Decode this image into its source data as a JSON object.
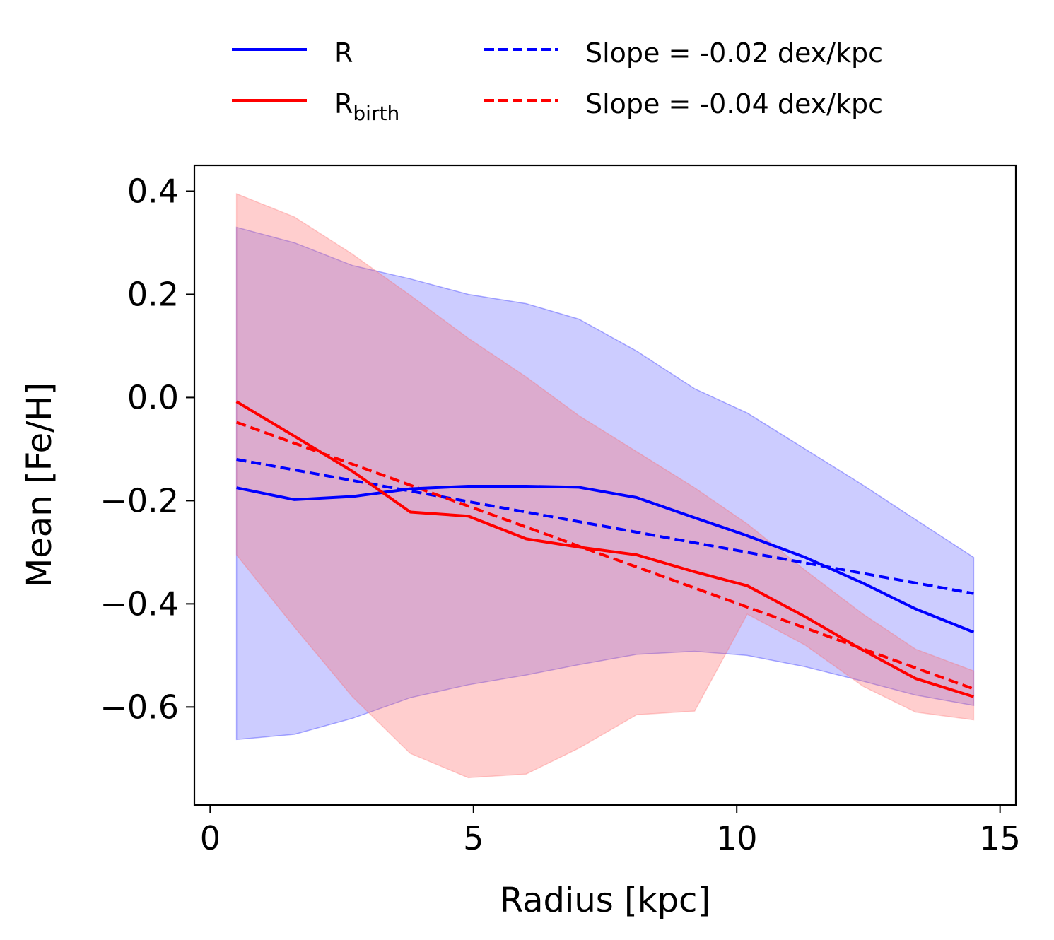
{
  "chart_data": {
    "type": "line",
    "xlabel": "Radius [kpc]",
    "ylabel": "Mean [Fe/H]",
    "xlim": [
      -0.3,
      15.3
    ],
    "ylim": [
      -0.79,
      0.45
    ],
    "xticks": [
      0,
      5,
      10,
      15
    ],
    "xtick_labels": [
      "0",
      "5",
      "10",
      "15"
    ],
    "yticks": [
      0.4,
      0.2,
      0.0,
      -0.2,
      -0.4,
      -0.6
    ],
    "ytick_labels": [
      "0.4",
      "0.2",
      "0.0",
      "−0.2",
      "−0.4",
      "−0.6"
    ],
    "grid": false,
    "legend_position": "top-center, outside plot, 2 columns",
    "x": [
      0.5,
      1.6,
      2.7,
      3.8,
      4.9,
      6.0,
      7.0,
      8.1,
      9.2,
      10.2,
      11.3,
      12.4,
      13.4,
      14.5
    ],
    "series": [
      {
        "name": "R",
        "color": "#0000ff",
        "style": "solid",
        "values": [
          -0.175,
          -0.198,
          -0.192,
          -0.177,
          -0.172,
          -0.172,
          -0.174,
          -0.194,
          -0.233,
          -0.268,
          -0.31,
          -0.36,
          -0.41,
          -0.455
        ],
        "band_upper": [
          0.33,
          0.3,
          0.256,
          0.23,
          0.2,
          0.182,
          0.152,
          0.09,
          0.017,
          -0.03,
          -0.1,
          -0.17,
          -0.237,
          -0.31
        ],
        "band_lower": [
          -0.663,
          -0.653,
          -0.622,
          -0.582,
          -0.557,
          -0.538,
          -0.518,
          -0.498,
          -0.492,
          -0.5,
          -0.522,
          -0.55,
          -0.577,
          -0.597
        ],
        "band_color": "#0000ff"
      },
      {
        "name": "R_birth",
        "color": "#ff0000",
        "style": "solid",
        "values": [
          -0.008,
          -0.075,
          -0.143,
          -0.222,
          -0.23,
          -0.274,
          -0.29,
          -0.305,
          -0.338,
          -0.365,
          -0.425,
          -0.49,
          -0.545,
          -0.58
        ],
        "band_upper": [
          0.395,
          0.35,
          0.278,
          0.198,
          0.115,
          0.04,
          -0.035,
          -0.105,
          -0.175,
          -0.245,
          -0.335,
          -0.42,
          -0.488,
          -0.53
        ],
        "band_lower": [
          -0.305,
          -0.445,
          -0.58,
          -0.69,
          -0.737,
          -0.73,
          -0.68,
          -0.615,
          -0.608,
          -0.42,
          -0.48,
          -0.56,
          -0.61,
          -0.625
        ],
        "band_color": "#ff6666"
      },
      {
        "name": "Slope = -0.02 dex/kpc",
        "color": "#0000ff",
        "style": "dashed",
        "line": [
          [
            0.5,
            -0.12
          ],
          [
            14.5,
            -0.38
          ]
        ]
      },
      {
        "name": "Slope = -0.04 dex/kpc",
        "color": "#ff0000",
        "style": "dashed",
        "line": [
          [
            0.5,
            -0.048
          ],
          [
            14.5,
            -0.565
          ]
        ]
      }
    ],
    "legend": [
      {
        "label": "R",
        "sub": "",
        "color": "#0000ff",
        "style": "solid"
      },
      {
        "label": "R",
        "sub": "birth",
        "color": "#ff0000",
        "style": "solid"
      },
      {
        "label": "Slope = -0.02 dex/kpc",
        "sub": "",
        "color": "#0000ff",
        "style": "dashed"
      },
      {
        "label": "Slope = -0.04 dex/kpc",
        "sub": "",
        "color": "#ff0000",
        "style": "dashed"
      }
    ]
  }
}
